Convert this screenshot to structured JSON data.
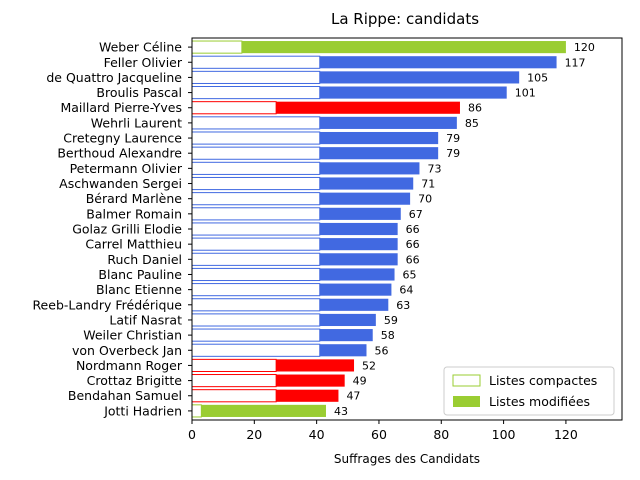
{
  "chart_data": {
    "type": "bar",
    "orientation": "horizontal",
    "stacked": true,
    "title": "La Rippe: candidats",
    "xlabel": "Suffrages des Candidats",
    "ylabel": "",
    "xlim": [
      0,
      138
    ],
    "xticks": [
      0,
      20,
      40,
      60,
      80,
      100,
      120
    ],
    "grid": false,
    "legend_position": "lower-right",
    "legend": [
      {
        "label": "Listes compactes",
        "style": "outline",
        "color": "#9acd32"
      },
      {
        "label": "Listes modifiées",
        "style": "filled",
        "color": "#9acd32"
      }
    ],
    "categories": [
      "Weber Céline",
      "Feller Olivier",
      "de Quattro Jacqueline",
      "Broulis Pascal",
      "Maillard Pierre-Yves",
      "Wehrli Laurent",
      "Cretegny Laurence",
      "Berthoud Alexandre",
      "Petermann Olivier",
      "Aschwanden Sergei",
      "Bérard Marlène",
      "Balmer Romain",
      "Golaz Grilli Elodie",
      "Carrel Matthieu",
      "Ruch Daniel",
      "Blanc Pauline",
      "Blanc Etienne",
      "Reeb-Landry Frédérique",
      "Latif Nasrat",
      "Weiler Christian",
      "von Overbeck Jan",
      "Nordmann Roger",
      "Crottaz Brigitte",
      "Bendahan Samuel",
      "Jotti Hadrien"
    ],
    "series": [
      {
        "name": "Listes compactes",
        "values": [
          16,
          41,
          41,
          41,
          27,
          41,
          41,
          41,
          41,
          41,
          41,
          41,
          41,
          41,
          41,
          41,
          41,
          41,
          41,
          41,
          41,
          27,
          27,
          27,
          3
        ]
      },
      {
        "name": "Listes modifiées",
        "values": [
          104,
          76,
          64,
          60,
          59,
          44,
          38,
          38,
          32,
          30,
          29,
          26,
          25,
          25,
          25,
          24,
          23,
          22,
          18,
          17,
          15,
          25,
          22,
          20,
          40
        ]
      }
    ],
    "totals": [
      120,
      117,
      105,
      101,
      86,
      85,
      79,
      79,
      73,
      71,
      70,
      67,
      66,
      66,
      66,
      65,
      64,
      63,
      59,
      58,
      56,
      52,
      49,
      47,
      43
    ],
    "colors": [
      "#9acd32",
      "#4169e1",
      "#4169e1",
      "#4169e1",
      "#ff0000",
      "#4169e1",
      "#4169e1",
      "#4169e1",
      "#4169e1",
      "#4169e1",
      "#4169e1",
      "#4169e1",
      "#4169e1",
      "#4169e1",
      "#4169e1",
      "#4169e1",
      "#4169e1",
      "#4169e1",
      "#4169e1",
      "#4169e1",
      "#4169e1",
      "#ff0000",
      "#ff0000",
      "#ff0000",
      "#9acd32"
    ]
  }
}
